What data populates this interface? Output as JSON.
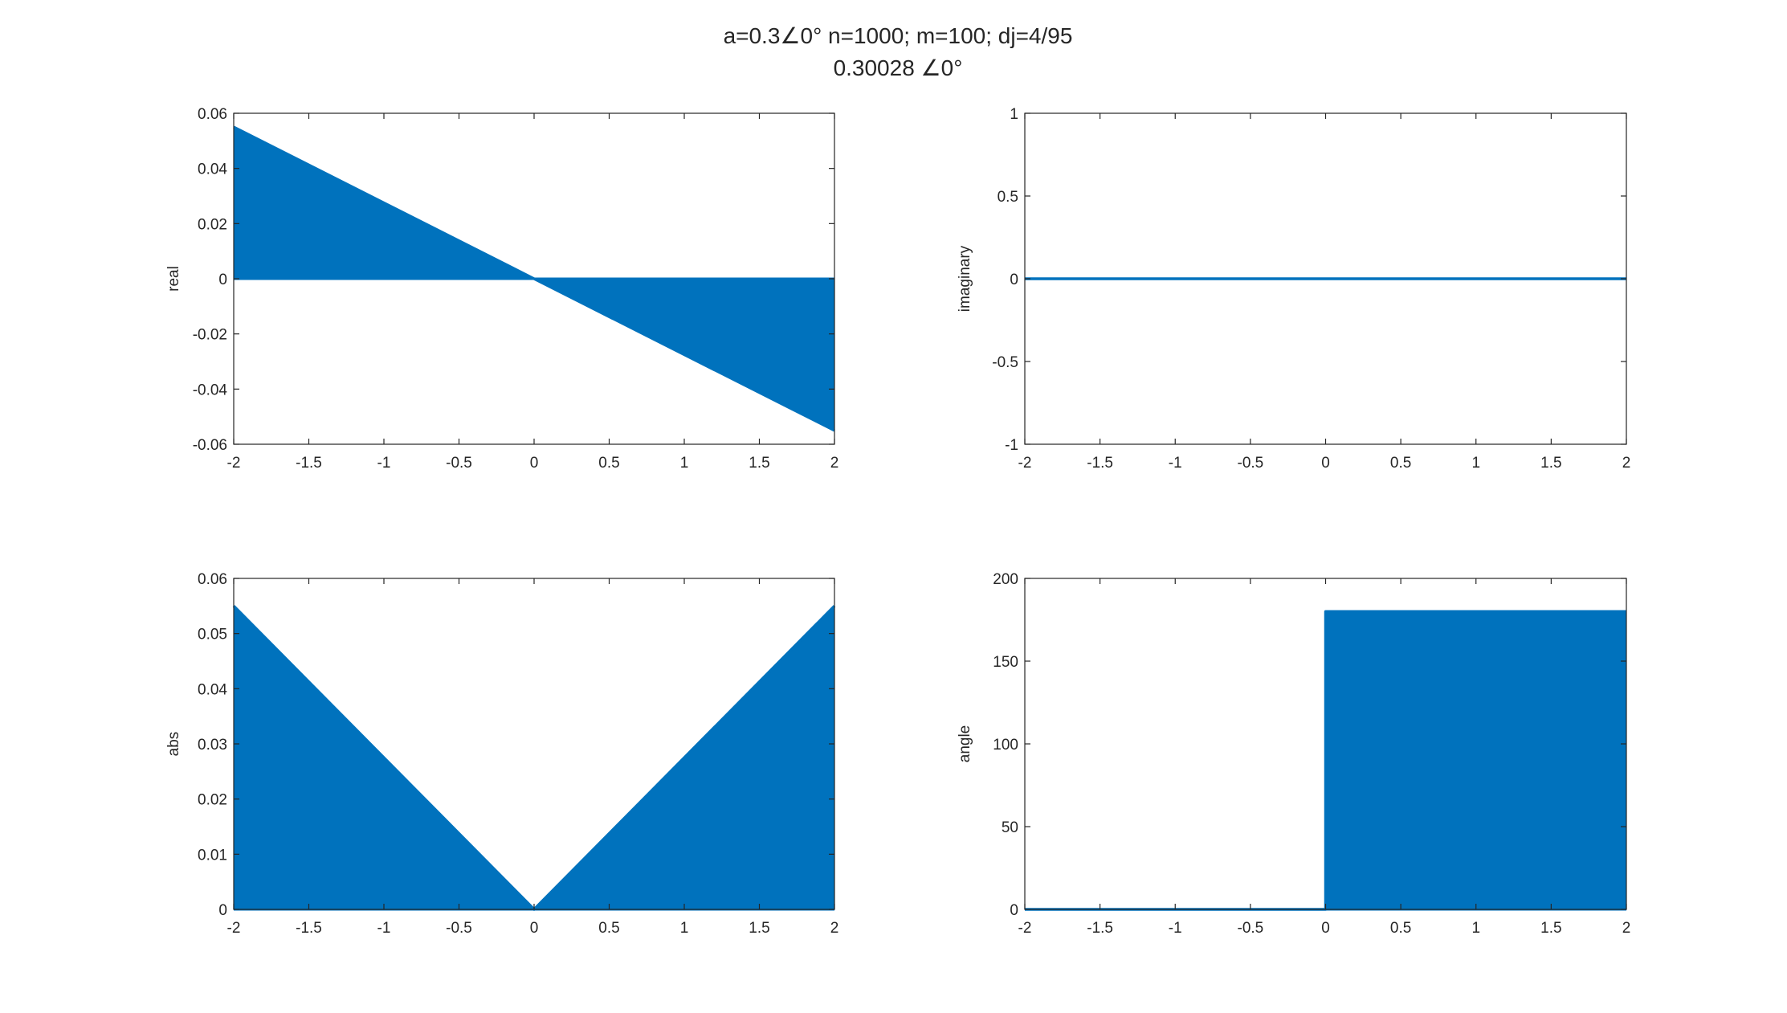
{
  "figure": {
    "title_line1": "a=0.3∠0° n=1000; m=100; dj=4/95",
    "title_line2": "0.30028 ∠0°",
    "series_color": "#0072BD",
    "axis_color": "#262626",
    "background": "#ffffff"
  },
  "chart_data": [
    {
      "type": "area",
      "ylabel": "real",
      "xlim": [
        -2,
        2
      ],
      "ylim": [
        -0.06,
        0.06
      ],
      "xticks": [
        "-2",
        "-1.5",
        "-1",
        "-0.5",
        "0",
        "0.5",
        "1",
        "1.5",
        "2"
      ],
      "yticks": [
        "0.06",
        "0.04",
        "0.02",
        "0",
        "-0.02",
        "-0.04",
        "-0.06"
      ],
      "x": [
        -2,
        0,
        2
      ],
      "y": [
        0.055,
        0,
        -0.055
      ]
    },
    {
      "type": "line",
      "ylabel": "imaginary",
      "xlim": [
        -2,
        2
      ],
      "ylim": [
        -1,
        1
      ],
      "xticks": [
        "-2",
        "-1.5",
        "-1",
        "-0.5",
        "0",
        "0.5",
        "1",
        "1.5",
        "2"
      ],
      "yticks": [
        "1",
        "0.5",
        "0",
        "-0.5",
        "-1"
      ],
      "x": [
        -2,
        2
      ],
      "y": [
        0,
        0
      ]
    },
    {
      "type": "area",
      "ylabel": "abs",
      "xlim": [
        -2,
        2
      ],
      "ylim": [
        0,
        0.06
      ],
      "xticks": [
        "-2",
        "-1.5",
        "-1",
        "-0.5",
        "0",
        "0.5",
        "1",
        "1.5",
        "2"
      ],
      "yticks": [
        "0.06",
        "0.05",
        "0.04",
        "0.03",
        "0.02",
        "0.01",
        "0"
      ],
      "x": [
        -2,
        0,
        2
      ],
      "y": [
        0.055,
        0,
        0.055
      ]
    },
    {
      "type": "area",
      "ylabel": "angle",
      "xlim": [
        -2,
        2
      ],
      "ylim": [
        0,
        200
      ],
      "xticks": [
        "-2",
        "-1.5",
        "-1",
        "-0.5",
        "0",
        "0.5",
        "1",
        "1.5",
        "2"
      ],
      "yticks": [
        "200",
        "150",
        "100",
        "50",
        "0"
      ],
      "x": [
        -2,
        0,
        0,
        2
      ],
      "y": [
        0,
        0,
        180,
        180
      ]
    }
  ]
}
